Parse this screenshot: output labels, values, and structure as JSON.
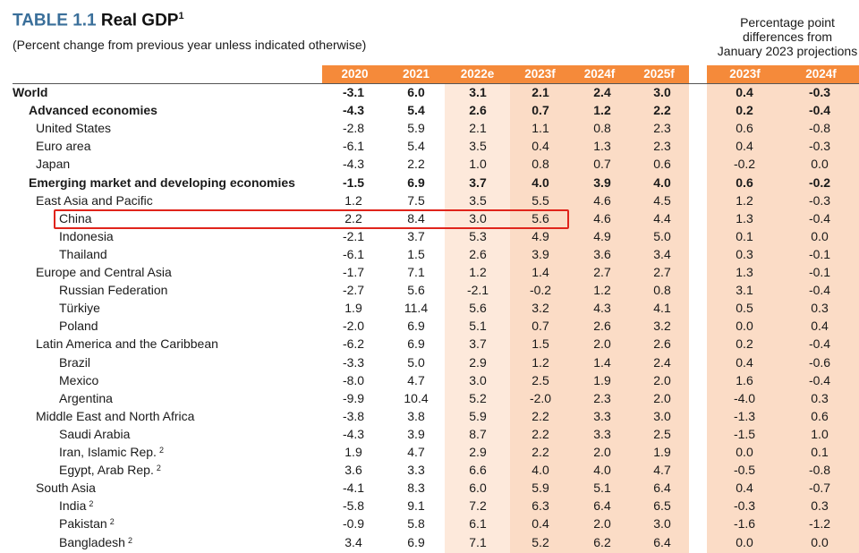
{
  "header": {
    "table_number": "TABLE 1.1",
    "table_name": "Real GDP",
    "title_sup": "1",
    "subtitle": "(Percent change from previous year unless indicated otherwise)",
    "diff_lines": [
      "Percentage point",
      "differences from",
      "January 2023 projections"
    ]
  },
  "columns": [
    "2020",
    "2021",
    "2022e",
    "2023f",
    "2024f",
    "2025f",
    "2023f",
    "2024f"
  ],
  "colors": {
    "header_orange": "#f58a3a",
    "band_peach": "#fbdcc6",
    "band_light": "#fde9db",
    "title_blue": "#3a6f9a",
    "highlight_red": "#e0241b"
  },
  "highlight_row": "China",
  "rows": [
    {
      "label": "World",
      "sup": "",
      "bold": true,
      "indent": 0,
      "values": [
        "-3.1",
        "6.0",
        "3.1",
        "2.1",
        "2.4",
        "3.0",
        "0.4",
        "-0.3"
      ]
    },
    {
      "label": "Advanced economies",
      "sup": "",
      "bold": true,
      "indent": 1,
      "values": [
        "-4.3",
        "5.4",
        "2.6",
        "0.7",
        "1.2",
        "2.2",
        "0.2",
        "-0.4"
      ]
    },
    {
      "label": "United States",
      "sup": "",
      "bold": false,
      "indent": 2,
      "values": [
        "-2.8",
        "5.9",
        "2.1",
        "1.1",
        "0.8",
        "2.3",
        "0.6",
        "-0.8"
      ]
    },
    {
      "label": "Euro area",
      "sup": "",
      "bold": false,
      "indent": 2,
      "values": [
        "-6.1",
        "5.4",
        "3.5",
        "0.4",
        "1.3",
        "2.3",
        "0.4",
        "-0.3"
      ]
    },
    {
      "label": "Japan",
      "sup": "",
      "bold": false,
      "indent": 2,
      "values": [
        "-4.3",
        "2.2",
        "1.0",
        "0.8",
        "0.7",
        "0.6",
        "-0.2",
        "0.0"
      ]
    },
    {
      "label": "Emerging market and developing economies",
      "sup": "",
      "bold": true,
      "indent": 1,
      "values": [
        "-1.5",
        "6.9",
        "3.7",
        "4.0",
        "3.9",
        "4.0",
        "0.6",
        "-0.2"
      ]
    },
    {
      "label": "East Asia and Pacific",
      "sup": "",
      "bold": false,
      "indent": 2,
      "values": [
        "1.2",
        "7.5",
        "3.5",
        "5.5",
        "4.6",
        "4.5",
        "1.2",
        "-0.3"
      ]
    },
    {
      "label": "China",
      "sup": "",
      "bold": false,
      "indent": 3,
      "values": [
        "2.2",
        "8.4",
        "3.0",
        "5.6",
        "4.6",
        "4.4",
        "1.3",
        "-0.4"
      ]
    },
    {
      "label": "Indonesia",
      "sup": "",
      "bold": false,
      "indent": 3,
      "values": [
        "-2.1",
        "3.7",
        "5.3",
        "4.9",
        "4.9",
        "5.0",
        "0.1",
        "0.0"
      ]
    },
    {
      "label": "Thailand",
      "sup": "",
      "bold": false,
      "indent": 3,
      "values": [
        "-6.1",
        "1.5",
        "2.6",
        "3.9",
        "3.6",
        "3.4",
        "0.3",
        "-0.1"
      ]
    },
    {
      "label": "Europe and Central Asia",
      "sup": "",
      "bold": false,
      "indent": 2,
      "values": [
        "-1.7",
        "7.1",
        "1.2",
        "1.4",
        "2.7",
        "2.7",
        "1.3",
        "-0.1"
      ]
    },
    {
      "label": "Russian Federation",
      "sup": "",
      "bold": false,
      "indent": 3,
      "values": [
        "-2.7",
        "5.6",
        "-2.1",
        "-0.2",
        "1.2",
        "0.8",
        "3.1",
        "-0.4"
      ]
    },
    {
      "label": "Türkiye",
      "sup": "",
      "bold": false,
      "indent": 3,
      "values": [
        "1.9",
        "11.4",
        "5.6",
        "3.2",
        "4.3",
        "4.1",
        "0.5",
        "0.3"
      ]
    },
    {
      "label": "Poland",
      "sup": "",
      "bold": false,
      "indent": 3,
      "values": [
        "-2.0",
        "6.9",
        "5.1",
        "0.7",
        "2.6",
        "3.2",
        "0.0",
        "0.4"
      ]
    },
    {
      "label": "Latin America and the Caribbean",
      "sup": "",
      "bold": false,
      "indent": 2,
      "values": [
        "-6.2",
        "6.9",
        "3.7",
        "1.5",
        "2.0",
        "2.6",
        "0.2",
        "-0.4"
      ]
    },
    {
      "label": "Brazil",
      "sup": "",
      "bold": false,
      "indent": 3,
      "values": [
        "-3.3",
        "5.0",
        "2.9",
        "1.2",
        "1.4",
        "2.4",
        "0.4",
        "-0.6"
      ]
    },
    {
      "label": "Mexico",
      "sup": "",
      "bold": false,
      "indent": 3,
      "values": [
        "-8.0",
        "4.7",
        "3.0",
        "2.5",
        "1.9",
        "2.0",
        "1.6",
        "-0.4"
      ]
    },
    {
      "label": "Argentina",
      "sup": "",
      "bold": false,
      "indent": 3,
      "values": [
        "-9.9",
        "10.4",
        "5.2",
        "-2.0",
        "2.3",
        "2.0",
        "-4.0",
        "0.3"
      ]
    },
    {
      "label": "Middle East and North Africa",
      "sup": "",
      "bold": false,
      "indent": 2,
      "values": [
        "-3.8",
        "3.8",
        "5.9",
        "2.2",
        "3.3",
        "3.0",
        "-1.3",
        "0.6"
      ]
    },
    {
      "label": "Saudi Arabia",
      "sup": "",
      "bold": false,
      "indent": 3,
      "values": [
        "-4.3",
        "3.9",
        "8.7",
        "2.2",
        "3.3",
        "2.5",
        "-1.5",
        "1.0"
      ]
    },
    {
      "label": "Iran, Islamic Rep.",
      "sup": "2",
      "bold": false,
      "indent": 3,
      "values": [
        "1.9",
        "4.7",
        "2.9",
        "2.2",
        "2.0",
        "1.9",
        "0.0",
        "0.1"
      ]
    },
    {
      "label": "Egypt, Arab Rep.",
      "sup": "2",
      "bold": false,
      "indent": 3,
      "values": [
        "3.6",
        "3.3",
        "6.6",
        "4.0",
        "4.0",
        "4.7",
        "-0.5",
        "-0.8"
      ]
    },
    {
      "label": "South Asia",
      "sup": "",
      "bold": false,
      "indent": 2,
      "values": [
        "-4.1",
        "8.3",
        "6.0",
        "5.9",
        "5.1",
        "6.4",
        "0.4",
        "-0.7"
      ]
    },
    {
      "label": "India",
      "sup": "2",
      "bold": false,
      "indent": 3,
      "values": [
        "-5.8",
        "9.1",
        "7.2",
        "6.3",
        "6.4",
        "6.5",
        "-0.3",
        "0.3"
      ]
    },
    {
      "label": "Pakistan",
      "sup": "2",
      "bold": false,
      "indent": 3,
      "values": [
        "-0.9",
        "5.8",
        "6.1",
        "0.4",
        "2.0",
        "3.0",
        "-1.6",
        "-1.2"
      ]
    },
    {
      "label": "Bangladesh",
      "sup": "2",
      "bold": false,
      "indent": 3,
      "values": [
        "3.4",
        "6.9",
        "7.1",
        "5.2",
        "6.2",
        "6.4",
        "0.0",
        "0.0"
      ]
    }
  ]
}
